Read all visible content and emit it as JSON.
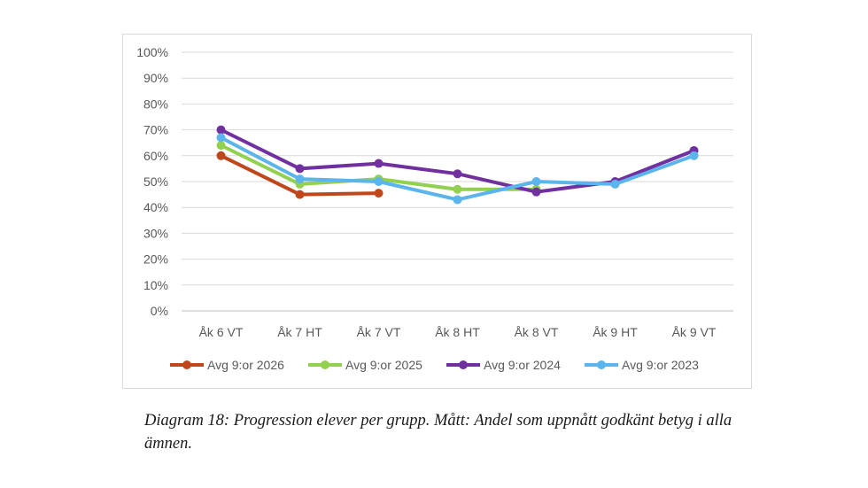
{
  "chart_data": {
    "type": "line",
    "categories": [
      "Åk 6 VT",
      "Åk 7 HT",
      "Åk 7 VT",
      "Åk 8 HT",
      "Åk 8 VT",
      "Åk 9 HT",
      "Åk 9 VT"
    ],
    "y_ticks": [
      "0%",
      "10%",
      "20%",
      "30%",
      "40%",
      "50%",
      "60%",
      "70%",
      "80%",
      "90%",
      "100%"
    ],
    "ylim": [
      0,
      100
    ],
    "grid": true,
    "legend_position": "bottom",
    "series": [
      {
        "name": "Avg 9:or 2026",
        "color": "#c0461c",
        "values": [
          60,
          45,
          45.5,
          null,
          null,
          null,
          null
        ]
      },
      {
        "name": "Avg 9:or 2025",
        "color": "#92d050",
        "values": [
          64,
          49,
          51,
          47,
          47,
          null,
          null
        ]
      },
      {
        "name": "Avg 9:or 2024",
        "color": "#7030a0",
        "values": [
          70,
          55,
          57,
          53,
          46,
          50,
          62
        ]
      },
      {
        "name": "Avg 9:or 2023",
        "color": "#5bb4ec",
        "values": [
          67,
          51,
          50,
          43,
          50,
          49,
          60
        ]
      }
    ]
  },
  "caption": "Diagram 18: Progression elever per grupp. Mått: Andel som uppnått godkänt betyg i alla ämnen."
}
